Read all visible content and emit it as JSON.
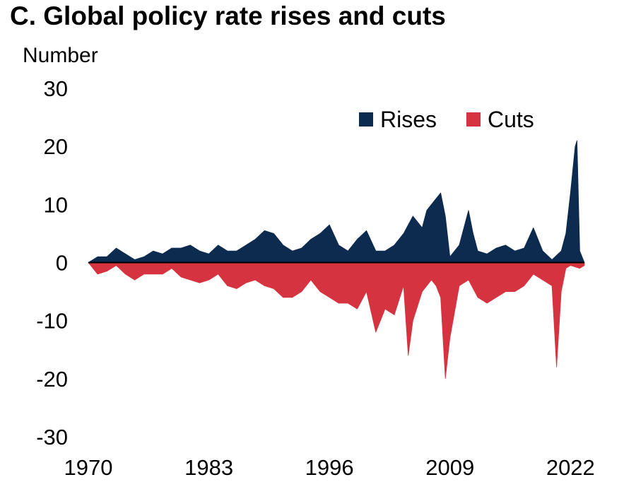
{
  "chart_data": {
    "type": "area",
    "title": "C. Global policy rate rises and cuts",
    "ylabel": "Number",
    "xlabel": "",
    "ylim": [
      -30,
      30
    ],
    "yticks": [
      30,
      20,
      10,
      0,
      -10,
      -20,
      -30
    ],
    "xticks": [
      1970,
      1983,
      1996,
      2009,
      2022
    ],
    "xlim": [
      1970,
      2023.5
    ],
    "legend_position": "top-right",
    "series": [
      {
        "name": "Rises",
        "color": "#0d2a4f",
        "points": [
          [
            1970,
            0
          ],
          [
            1971,
            1
          ],
          [
            1972,
            1
          ],
          [
            1973,
            2.5
          ],
          [
            1974,
            1.5
          ],
          [
            1975,
            0.5
          ],
          [
            1976,
            1
          ],
          [
            1977,
            2
          ],
          [
            1978,
            1.5
          ],
          [
            1979,
            2.5
          ],
          [
            1980,
            2.5
          ],
          [
            1981,
            3
          ],
          [
            1982,
            2
          ],
          [
            1983,
            1.5
          ],
          [
            1984,
            3
          ],
          [
            1985,
            2
          ],
          [
            1986,
            2
          ],
          [
            1987,
            3
          ],
          [
            1988,
            4
          ],
          [
            1989,
            5.5
          ],
          [
            1990,
            5
          ],
          [
            1991,
            3
          ],
          [
            1992,
            2
          ],
          [
            1993,
            2.5
          ],
          [
            1994,
            4
          ],
          [
            1995,
            5
          ],
          [
            1996,
            6.5
          ],
          [
            1997,
            3
          ],
          [
            1998,
            2
          ],
          [
            1999,
            4
          ],
          [
            2000,
            5.5
          ],
          [
            2001,
            2
          ],
          [
            2002,
            2
          ],
          [
            2003,
            3
          ],
          [
            2004,
            5
          ],
          [
            2005,
            8
          ],
          [
            2006,
            6
          ],
          [
            2006.5,
            9
          ],
          [
            2007,
            10
          ],
          [
            2008,
            12
          ],
          [
            2008.5,
            8
          ],
          [
            2009,
            1
          ],
          [
            2010,
            3
          ],
          [
            2011,
            9
          ],
          [
            2011.5,
            5
          ],
          [
            2012,
            2
          ],
          [
            2013,
            1.5
          ],
          [
            2014,
            2.5
          ],
          [
            2015,
            3
          ],
          [
            2016,
            2
          ],
          [
            2017,
            2.5
          ],
          [
            2018,
            6
          ],
          [
            2019,
            2
          ],
          [
            2020,
            0.5
          ],
          [
            2021,
            2
          ],
          [
            2021.5,
            5
          ],
          [
            2022,
            12
          ],
          [
            2022.5,
            20
          ],
          [
            2022.7,
            21
          ],
          [
            2023,
            2
          ],
          [
            2023.5,
            0
          ]
        ]
      },
      {
        "name": "Cuts",
        "color": "#d63340",
        "points": [
          [
            1970,
            0
          ],
          [
            1971,
            -2
          ],
          [
            1972,
            -1.5
          ],
          [
            1973,
            -0.5
          ],
          [
            1974,
            -2
          ],
          [
            1975,
            -3
          ],
          [
            1976,
            -2
          ],
          [
            1977,
            -2
          ],
          [
            1978,
            -2
          ],
          [
            1979,
            -1
          ],
          [
            1980,
            -2.5
          ],
          [
            1981,
            -3
          ],
          [
            1982,
            -3.5
          ],
          [
            1983,
            -3
          ],
          [
            1984,
            -2
          ],
          [
            1985,
            -4
          ],
          [
            1986,
            -4.5
          ],
          [
            1987,
            -3.5
          ],
          [
            1988,
            -3
          ],
          [
            1989,
            -4
          ],
          [
            1990,
            -4.5
          ],
          [
            1991,
            -6
          ],
          [
            1992,
            -6
          ],
          [
            1993,
            -5
          ],
          [
            1994,
            -3
          ],
          [
            1995,
            -5
          ],
          [
            1996,
            -6
          ],
          [
            1997,
            -7
          ],
          [
            1998,
            -7
          ],
          [
            1999,
            -8
          ],
          [
            2000,
            -5
          ],
          [
            2001,
            -12
          ],
          [
            2002,
            -8
          ],
          [
            2003,
            -9
          ],
          [
            2004,
            -4
          ],
          [
            2004.5,
            -16
          ],
          [
            2005,
            -10
          ],
          [
            2006,
            -5
          ],
          [
            2007,
            -3
          ],
          [
            2007.5,
            -4
          ],
          [
            2008,
            -6
          ],
          [
            2008.5,
            -20
          ],
          [
            2009,
            -13
          ],
          [
            2010,
            -4
          ],
          [
            2011,
            -3
          ],
          [
            2012,
            -6
          ],
          [
            2013,
            -7
          ],
          [
            2014,
            -6
          ],
          [
            2015,
            -5
          ],
          [
            2016,
            -5
          ],
          [
            2017,
            -4
          ],
          [
            2018,
            -2
          ],
          [
            2019,
            -3
          ],
          [
            2020,
            -4
          ],
          [
            2020.5,
            -18
          ],
          [
            2021,
            -5
          ],
          [
            2021.5,
            -1
          ],
          [
            2022,
            -0.5
          ],
          [
            2023,
            -1
          ],
          [
            2023.5,
            -0.5
          ]
        ]
      }
    ]
  }
}
